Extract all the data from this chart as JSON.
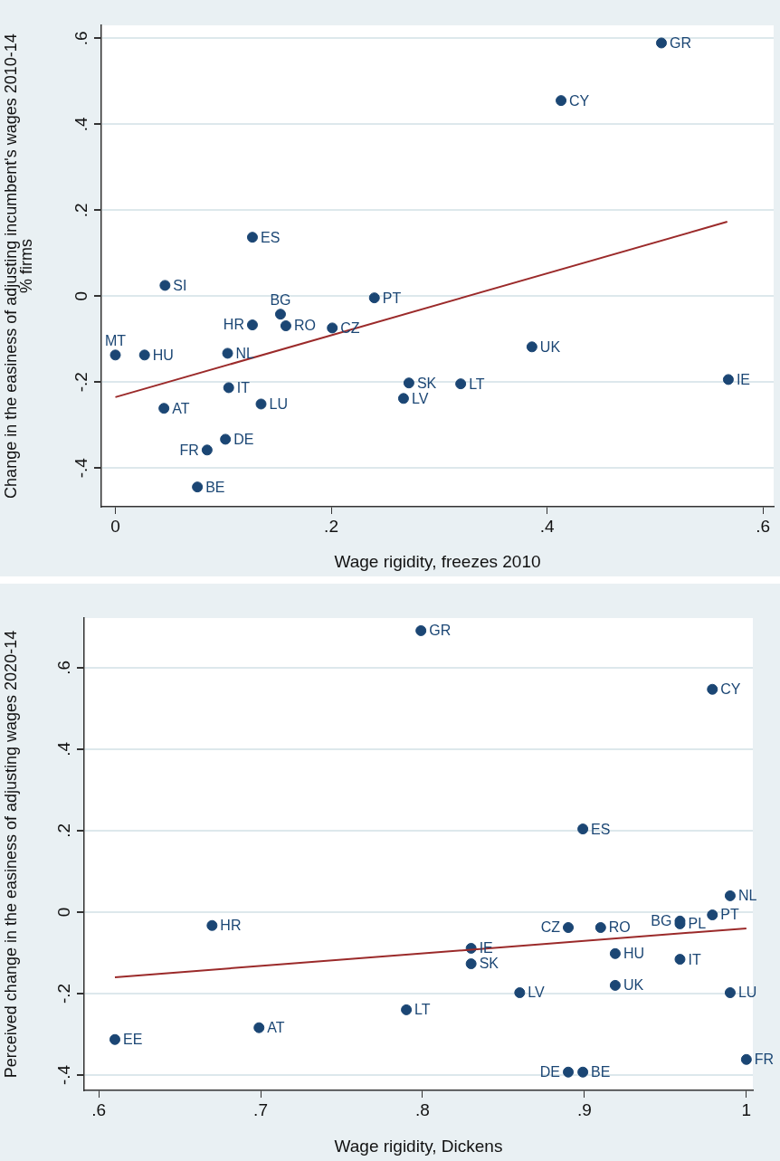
{
  "chart_data": [
    {
      "type": "scatter",
      "xlabel": "Wage rigidity, freezes 2010",
      "ylabel": "Change in the easiness of adjusting incumbent's wages 2010-14\n% firms",
      "xlim": [
        -0.013,
        0.61
      ],
      "ylim": [
        -0.49,
        0.63
      ],
      "xticks": [
        {
          "value": 0,
          "label": "0"
        },
        {
          "value": 0.2,
          "label": ".2"
        },
        {
          "value": 0.4,
          "label": ".4"
        },
        {
          "value": 0.6,
          "label": ".6"
        }
      ],
      "yticks": [
        {
          "value": -0.4,
          "label": "-.4"
        },
        {
          "value": -0.2,
          "label": "-.2"
        },
        {
          "value": 0,
          "label": "0"
        },
        {
          "value": 0.2,
          "label": ".2"
        },
        {
          "value": 0.4,
          "label": ".4"
        },
        {
          "value": 0.6,
          "label": ".6"
        }
      ],
      "grid": "y",
      "legend": false,
      "marker": "circle",
      "series": [
        {
          "name": "GR",
          "color": "#1b4674",
          "x": [
            0.506
          ],
          "values": [
            0.589
          ]
        },
        {
          "name": "CY",
          "color": "#1b4674",
          "x": [
            0.413
          ],
          "values": [
            0.455
          ]
        },
        {
          "name": "ES",
          "color": "#1b4674",
          "x": [
            0.127
          ],
          "values": [
            0.137
          ]
        },
        {
          "name": "SI",
          "color": "#1b4674",
          "x": [
            0.046
          ],
          "values": [
            0.025
          ]
        },
        {
          "name": "PT",
          "color": "#1b4674",
          "x": [
            0.24
          ],
          "values": [
            -0.004
          ]
        },
        {
          "name": "BG",
          "color": "#1b4674",
          "x": [
            0.153
          ],
          "values": [
            -0.042
          ]
        },
        {
          "name": "HR",
          "color": "#1b4674",
          "x": [
            0.127
          ],
          "values": [
            -0.067
          ]
        },
        {
          "name": "RO",
          "color": "#1b4674",
          "x": [
            0.158
          ],
          "values": [
            -0.069
          ]
        },
        {
          "name": "CZ",
          "color": "#1b4674",
          "x": [
            0.201
          ],
          "values": [
            -0.074
          ]
        },
        {
          "name": "MT",
          "color": "#1b4674",
          "x": [
            0
          ],
          "values": [
            -0.137
          ]
        },
        {
          "name": "HU",
          "color": "#1b4674",
          "x": [
            0.027
          ],
          "values": [
            -0.137
          ]
        },
        {
          "name": "NL",
          "color": "#1b4674",
          "x": [
            0.104
          ],
          "values": [
            -0.133
          ]
        },
        {
          "name": "UK",
          "color": "#1b4674",
          "x": [
            0.386
          ],
          "values": [
            -0.118
          ]
        },
        {
          "name": "IE",
          "color": "#1b4674",
          "x": [
            0.568
          ],
          "values": [
            -0.194
          ]
        },
        {
          "name": "SK",
          "color": "#1b4674",
          "x": [
            0.272
          ],
          "values": [
            -0.202
          ]
        },
        {
          "name": "LT",
          "color": "#1b4674",
          "x": [
            0.32
          ],
          "values": [
            -0.204
          ]
        },
        {
          "name": "IT",
          "color": "#1b4674",
          "x": [
            0.105
          ],
          "values": [
            -0.213
          ]
        },
        {
          "name": "LV",
          "color": "#1b4674",
          "x": [
            0.267
          ],
          "values": [
            -0.238
          ]
        },
        {
          "name": "LU",
          "color": "#1b4674",
          "x": [
            0.135
          ],
          "values": [
            -0.251
          ]
        },
        {
          "name": "AT",
          "color": "#1b4674",
          "x": [
            0.045
          ],
          "values": [
            -0.261
          ]
        },
        {
          "name": "DE",
          "color": "#1b4674",
          "x": [
            0.102
          ],
          "values": [
            -0.333
          ]
        },
        {
          "name": "FR",
          "color": "#1b4674",
          "x": [
            0.085
          ],
          "values": [
            -0.358
          ]
        },
        {
          "name": "BE",
          "color": "#1b4674",
          "x": [
            0.076
          ],
          "values": [
            -0.444
          ]
        },
        {
          "type": "line",
          "color": "#9b2a2a",
          "marker": "none",
          "line_style": "solid",
          "x": [
            0,
            0.567
          ],
          "values": [
            -0.235,
            0.173
          ]
        }
      ]
    },
    {
      "type": "scatter",
      "xlabel": "Wage rigidity, Dickens",
      "ylabel": "Perceived change in the easiness of adjusting wages 2020-14",
      "xlim": [
        0.591,
        1.004
      ],
      "ylim": [
        -0.438,
        0.722
      ],
      "xticks": [
        {
          "value": 0.6,
          "label": ".6"
        },
        {
          "value": 0.7,
          "label": ".7"
        },
        {
          "value": 0.8,
          "label": ".8"
        },
        {
          "value": 0.9,
          "label": ".9"
        },
        {
          "value": 1,
          "label": "1"
        }
      ],
      "yticks": [
        {
          "value": -0.4,
          "label": "-.4"
        },
        {
          "value": -0.2,
          "label": "-.2"
        },
        {
          "value": 0,
          "label": "0"
        },
        {
          "value": 0.2,
          "label": ".2"
        },
        {
          "value": 0.4,
          "label": ".4"
        },
        {
          "value": 0.6,
          "label": ".6"
        }
      ],
      "grid": "y",
      "legend": false,
      "marker": "circle",
      "series": [
        {
          "name": "GR",
          "color": "#1b4674",
          "x": [
            0.799
          ],
          "values": [
            0.691
          ]
        },
        {
          "name": "CY",
          "color": "#1b4674",
          "x": [
            0.979
          ],
          "values": [
            0.547
          ]
        },
        {
          "name": "ES",
          "color": "#1b4674",
          "x": [
            0.899
          ],
          "values": [
            0.204
          ]
        },
        {
          "name": "NL",
          "color": "#1b4674",
          "x": [
            0.99
          ],
          "values": [
            0.04
          ]
        },
        {
          "name": "PT",
          "color": "#1b4674",
          "x": [
            0.979
          ],
          "values": [
            -0.007
          ]
        },
        {
          "name": "BG",
          "color": "#1b4674",
          "x": [
            0.959
          ],
          "values": [
            -0.022
          ]
        },
        {
          "name": "PL",
          "color": "#1b4674",
          "x": [
            0.959
          ],
          "values": [
            -0.029
          ]
        },
        {
          "name": "HR",
          "color": "#1b4674",
          "x": [
            0.67
          ],
          "values": [
            -0.033
          ]
        },
        {
          "name": "CZ",
          "color": "#1b4674",
          "x": [
            0.89
          ],
          "values": [
            -0.038
          ]
        },
        {
          "name": "RO",
          "color": "#1b4674",
          "x": [
            0.91
          ],
          "values": [
            -0.038
          ]
        },
        {
          "name": "IE",
          "color": "#1b4674",
          "x": [
            0.83
          ],
          "values": [
            -0.089
          ]
        },
        {
          "name": "HU",
          "color": "#1b4674",
          "x": [
            0.919
          ],
          "values": [
            -0.102
          ]
        },
        {
          "name": "IT",
          "color": "#1b4674",
          "x": [
            0.959
          ],
          "values": [
            -0.116
          ]
        },
        {
          "name": "SK",
          "color": "#1b4674",
          "x": [
            0.83
          ],
          "values": [
            -0.127
          ]
        },
        {
          "name": "UK",
          "color": "#1b4674",
          "x": [
            0.919
          ],
          "values": [
            -0.18
          ]
        },
        {
          "name": "LV",
          "color": "#1b4674",
          "x": [
            0.86
          ],
          "values": [
            -0.198
          ]
        },
        {
          "name": "LU",
          "color": "#1b4674",
          "x": [
            0.99
          ],
          "values": [
            -0.198
          ]
        },
        {
          "name": "LT",
          "color": "#1b4674",
          "x": [
            0.79
          ],
          "values": [
            -0.24
          ]
        },
        {
          "name": "AT",
          "color": "#1b4674",
          "x": [
            0.699
          ],
          "values": [
            -0.284
          ]
        },
        {
          "name": "EE",
          "color": "#1b4674",
          "x": [
            0.61
          ],
          "values": [
            -0.313
          ]
        },
        {
          "name": "FR",
          "color": "#1b4674",
          "x": [
            1.0
          ],
          "values": [
            -0.362
          ]
        },
        {
          "name": "DE",
          "color": "#1b4674",
          "x": [
            0.89
          ],
          "values": [
            -0.393
          ]
        },
        {
          "name": "BE",
          "color": "#1b4674",
          "x": [
            0.899
          ],
          "values": [
            -0.393
          ]
        },
        {
          "type": "line",
          "color": "#9b2a2a",
          "marker": "none",
          "line_style": "solid",
          "x": [
            0.61,
            1.0
          ],
          "values": [
            -0.16,
            -0.04
          ]
        }
      ]
    }
  ]
}
